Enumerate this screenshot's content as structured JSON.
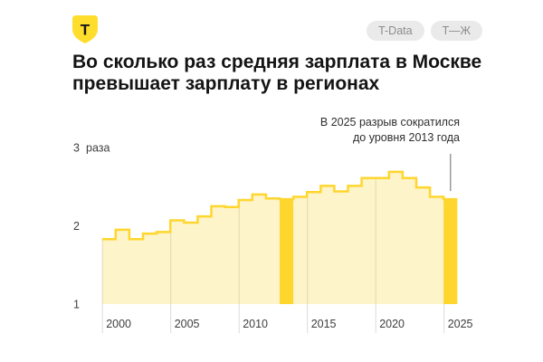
{
  "header": {
    "logo_letter": "Т",
    "badges": [
      {
        "label": "T-Data"
      },
      {
        "label": "Т—Ж"
      }
    ]
  },
  "title": "Во сколько раз средняя зарплата в Москве превышает зарплату в регионах",
  "annotation": {
    "line1": "В 2025 разрыв сократился",
    "line2": "до уровня 2013 года"
  },
  "chart_data": {
    "type": "area",
    "style": "step-area",
    "x": [
      2000,
      2001,
      2002,
      2003,
      2004,
      2005,
      2006,
      2007,
      2008,
      2009,
      2010,
      2011,
      2012,
      2013,
      2014,
      2015,
      2016,
      2017,
      2018,
      2019,
      2020,
      2021,
      2022,
      2023,
      2024,
      2025
    ],
    "values": [
      1.83,
      1.95,
      1.83,
      1.9,
      1.92,
      2.07,
      2.04,
      2.12,
      2.25,
      2.24,
      2.33,
      2.4,
      2.35,
      2.34,
      2.37,
      2.43,
      2.51,
      2.44,
      2.51,
      2.61,
      2.61,
      2.69,
      2.61,
      2.49,
      2.37,
      2.34
    ],
    "highlighted_years": [
      2013,
      2025
    ],
    "title": "Во сколько раз средняя зарплата в Москве превышает зарплату в регионах",
    "y_axis": {
      "ticks": [
        1,
        2,
        3
      ],
      "unit_label": "раза",
      "range": [
        1,
        3
      ],
      "gridlines": false
    },
    "x_axis": {
      "tick_years": [
        2000,
        2005,
        2010,
        2015,
        2020,
        2025
      ],
      "gridlines": true
    },
    "colors": {
      "accent": "#FFD62E",
      "area_fill": "rgba(253,212,40,0.25)",
      "gridline": "#DBDBDB",
      "pointer_line": "#9B9B9B",
      "axis_text": "#3D3D3D",
      "logo_yellow": "#FFDD2D"
    }
  }
}
